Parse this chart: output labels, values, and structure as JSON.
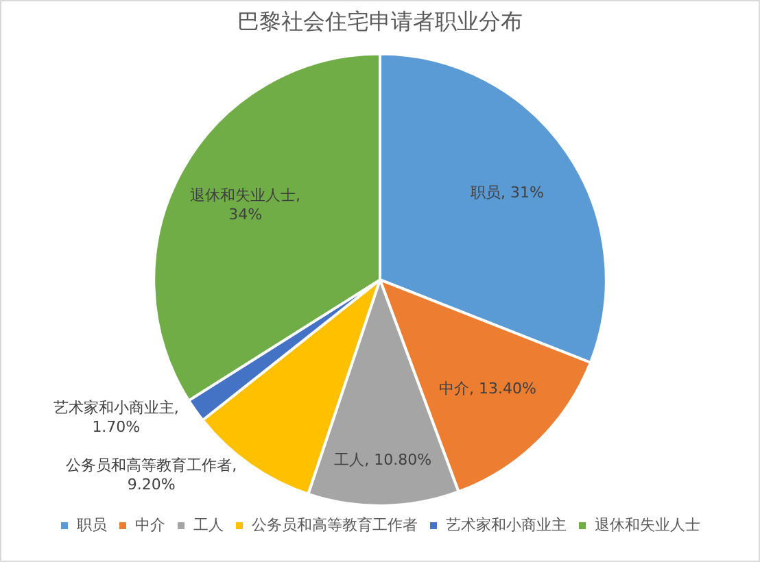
{
  "chart_data": {
    "type": "pie",
    "title": "巴黎社会住宅申请者职业分布",
    "categories": [
      "职员",
      "中介",
      "工人",
      "公务员和高等教育工作者",
      "艺术家和小商业主",
      "退休和失业人士"
    ],
    "values": [
      31,
      13.4,
      10.8,
      9.2,
      1.7,
      34
    ],
    "value_labels": [
      "职员, 31%",
      "中介, 13.40%",
      "工人, 10.80%",
      "公务员和高等教育工作者, 9.20%",
      "艺术家和小商业主, 1.70%",
      "退休和失业人士, 34%"
    ],
    "colors": [
      "#5b9bd5",
      "#ed7d31",
      "#a5a5a5",
      "#ffc000",
      "#4472c4",
      "#70ad47"
    ],
    "legend": "bottom"
  }
}
